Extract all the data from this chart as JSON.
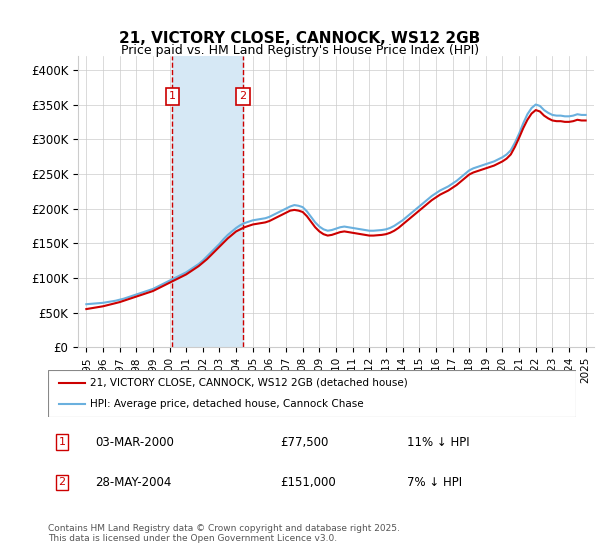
{
  "title": "21, VICTORY CLOSE, CANNOCK, WS12 2GB",
  "subtitle": "Price paid vs. HM Land Registry's House Price Index (HPI)",
  "footer": "Contains HM Land Registry data © Crown copyright and database right 2025.\nThis data is licensed under the Open Government Licence v3.0.",
  "legend_line1": "21, VICTORY CLOSE, CANNOCK, WS12 2GB (detached house)",
  "legend_line2": "HPI: Average price, detached house, Cannock Chase",
  "sale1_label": "1",
  "sale1_date": "03-MAR-2000",
  "sale1_price": "£77,500",
  "sale1_hpi": "11% ↓ HPI",
  "sale2_label": "2",
  "sale2_date": "28-MAY-2004",
  "sale2_price": "£151,000",
  "sale2_hpi": "7% ↓ HPI",
  "sale1_x": 2000.17,
  "sale2_x": 2004.4,
  "sale1_y": 77500,
  "sale2_y": 151000,
  "hpi_color": "#6ab0de",
  "price_color": "#cc0000",
  "shade_color": "#d6e8f5",
  "grid_color": "#cccccc",
  "marker_border_color": "#cc0000",
  "background_color": "#ffffff",
  "ylim": [
    0,
    420000
  ],
  "xlim": [
    1994.5,
    2025.5
  ],
  "yticks": [
    0,
    50000,
    100000,
    150000,
    200000,
    250000,
    300000,
    350000,
    400000
  ],
  "ytick_labels": [
    "£0",
    "£50K",
    "£100K",
    "£150K",
    "£200K",
    "£250K",
    "£300K",
    "£350K",
    "£400K"
  ],
  "xticks": [
    1995,
    1996,
    1997,
    1998,
    1999,
    2000,
    2001,
    2002,
    2003,
    2004,
    2005,
    2006,
    2007,
    2008,
    2009,
    2010,
    2011,
    2012,
    2013,
    2014,
    2015,
    2016,
    2017,
    2018,
    2019,
    2020,
    2021,
    2022,
    2023,
    2024,
    2025
  ],
  "hpi_x": [
    1995.0,
    1995.25,
    1995.5,
    1995.75,
    1996.0,
    1996.25,
    1996.5,
    1996.75,
    1997.0,
    1997.25,
    1997.5,
    1997.75,
    1998.0,
    1998.25,
    1998.5,
    1998.75,
    1999.0,
    1999.25,
    1999.5,
    1999.75,
    2000.0,
    2000.25,
    2000.5,
    2000.75,
    2001.0,
    2001.25,
    2001.5,
    2001.75,
    2002.0,
    2002.25,
    2002.5,
    2002.75,
    2003.0,
    2003.25,
    2003.5,
    2003.75,
    2004.0,
    2004.25,
    2004.5,
    2004.75,
    2005.0,
    2005.25,
    2005.5,
    2005.75,
    2006.0,
    2006.25,
    2006.5,
    2006.75,
    2007.0,
    2007.25,
    2007.5,
    2007.75,
    2008.0,
    2008.25,
    2008.5,
    2008.75,
    2009.0,
    2009.25,
    2009.5,
    2009.75,
    2010.0,
    2010.25,
    2010.5,
    2010.75,
    2011.0,
    2011.25,
    2011.5,
    2011.75,
    2012.0,
    2012.25,
    2012.5,
    2012.75,
    2013.0,
    2013.25,
    2013.5,
    2013.75,
    2014.0,
    2014.25,
    2014.5,
    2014.75,
    2015.0,
    2015.25,
    2015.5,
    2015.75,
    2016.0,
    2016.25,
    2016.5,
    2016.75,
    2017.0,
    2017.25,
    2017.5,
    2017.75,
    2018.0,
    2018.25,
    2018.5,
    2018.75,
    2019.0,
    2019.25,
    2019.5,
    2019.75,
    2020.0,
    2020.25,
    2020.5,
    2020.75,
    2021.0,
    2021.25,
    2021.5,
    2021.75,
    2022.0,
    2022.25,
    2022.5,
    2022.75,
    2023.0,
    2023.25,
    2023.5,
    2023.75,
    2024.0,
    2024.25,
    2024.5,
    2024.75,
    2025.0
  ],
  "hpi_y": [
    62000,
    62500,
    63000,
    63500,
    64000,
    65000,
    66000,
    67000,
    68500,
    70000,
    72000,
    74000,
    76000,
    78000,
    80000,
    82000,
    84000,
    87000,
    90000,
    93000,
    96000,
    99000,
    102000,
    105000,
    108000,
    112000,
    116000,
    120000,
    125000,
    131000,
    137000,
    143000,
    149000,
    156000,
    162000,
    167000,
    172000,
    176000,
    179000,
    181000,
    183000,
    184000,
    185000,
    186000,
    188000,
    191000,
    194000,
    197000,
    200000,
    203000,
    205000,
    204000,
    202000,
    196000,
    188000,
    180000,
    174000,
    170000,
    168000,
    169000,
    171000,
    173000,
    174000,
    173000,
    172000,
    171000,
    170000,
    169000,
    168000,
    168000,
    168500,
    169000,
    170000,
    172000,
    175000,
    179000,
    183000,
    188000,
    193000,
    198000,
    203000,
    208000,
    213000,
    218000,
    222000,
    226000,
    229000,
    232000,
    236000,
    240000,
    245000,
    250000,
    255000,
    258000,
    260000,
    262000,
    264000,
    266000,
    268000,
    271000,
    274000,
    278000,
    284000,
    295000,
    308000,
    323000,
    336000,
    345000,
    350000,
    348000,
    342000,
    338000,
    335000,
    334000,
    334000,
    333000,
    333000,
    334000,
    336000,
    335000,
    335000
  ],
  "price_x": [
    1995.0,
    1995.25,
    1995.5,
    1995.75,
    1996.0,
    1996.25,
    1996.5,
    1996.75,
    1997.0,
    1997.25,
    1997.5,
    1997.75,
    1998.0,
    1998.25,
    1998.5,
    1998.75,
    1999.0,
    1999.25,
    1999.5,
    1999.75,
    2000.0,
    2000.25,
    2000.5,
    2000.75,
    2001.0,
    2001.25,
    2001.5,
    2001.75,
    2002.0,
    2002.25,
    2002.5,
    2002.75,
    2003.0,
    2003.25,
    2003.5,
    2003.75,
    2004.0,
    2004.25,
    2004.5,
    2004.75,
    2005.0,
    2005.25,
    2005.5,
    2005.75,
    2006.0,
    2006.25,
    2006.5,
    2006.75,
    2007.0,
    2007.25,
    2007.5,
    2007.75,
    2008.0,
    2008.25,
    2008.5,
    2008.75,
    2009.0,
    2009.25,
    2009.5,
    2009.75,
    2010.0,
    2010.25,
    2010.5,
    2010.75,
    2011.0,
    2011.25,
    2011.5,
    2011.75,
    2012.0,
    2012.25,
    2012.5,
    2012.75,
    2013.0,
    2013.25,
    2013.5,
    2013.75,
    2014.0,
    2014.25,
    2014.5,
    2014.75,
    2015.0,
    2015.25,
    2015.5,
    2015.75,
    2016.0,
    2016.25,
    2016.5,
    2016.75,
    2017.0,
    2017.25,
    2017.5,
    2017.75,
    2018.0,
    2018.25,
    2018.5,
    2018.75,
    2019.0,
    2019.25,
    2019.5,
    2019.75,
    2020.0,
    2020.25,
    2020.5,
    2020.75,
    2021.0,
    2021.25,
    2021.5,
    2021.75,
    2022.0,
    2022.25,
    2022.5,
    2022.75,
    2023.0,
    2023.25,
    2023.5,
    2023.75,
    2024.0,
    2024.25,
    2024.5,
    2024.75,
    2025.0
  ],
  "price_y": [
    55000,
    56000,
    57000,
    58000,
    59000,
    60500,
    62000,
    63500,
    65000,
    67000,
    69000,
    71000,
    73000,
    75000,
    77000,
    79000,
    81000,
    84000,
    87000,
    90000,
    93000,
    96000,
    99000,
    102000,
    105000,
    109000,
    113000,
    117000,
    122000,
    127000,
    133000,
    139000,
    145000,
    151000,
    157000,
    162000,
    167000,
    170000,
    173000,
    175000,
    177000,
    178000,
    179000,
    180000,
    182000,
    185000,
    188000,
    191000,
    194000,
    197000,
    198000,
    197000,
    195000,
    189000,
    181000,
    173000,
    167000,
    163000,
    161000,
    162000,
    164000,
    166000,
    167000,
    166000,
    165000,
    164000,
    163000,
    162000,
    161000,
    161000,
    161500,
    162000,
    163000,
    165000,
    168000,
    172000,
    177000,
    182000,
    187000,
    192000,
    197000,
    202000,
    207000,
    212000,
    216000,
    220000,
    223000,
    226000,
    230000,
    234000,
    239000,
    244000,
    249000,
    252000,
    254000,
    256000,
    258000,
    260000,
    262000,
    265000,
    268000,
    272000,
    278000,
    289000,
    302000,
    316000,
    328000,
    337000,
    342000,
    340000,
    334000,
    330000,
    327000,
    326000,
    326000,
    325000,
    325000,
    326000,
    328000,
    327000,
    327000
  ]
}
